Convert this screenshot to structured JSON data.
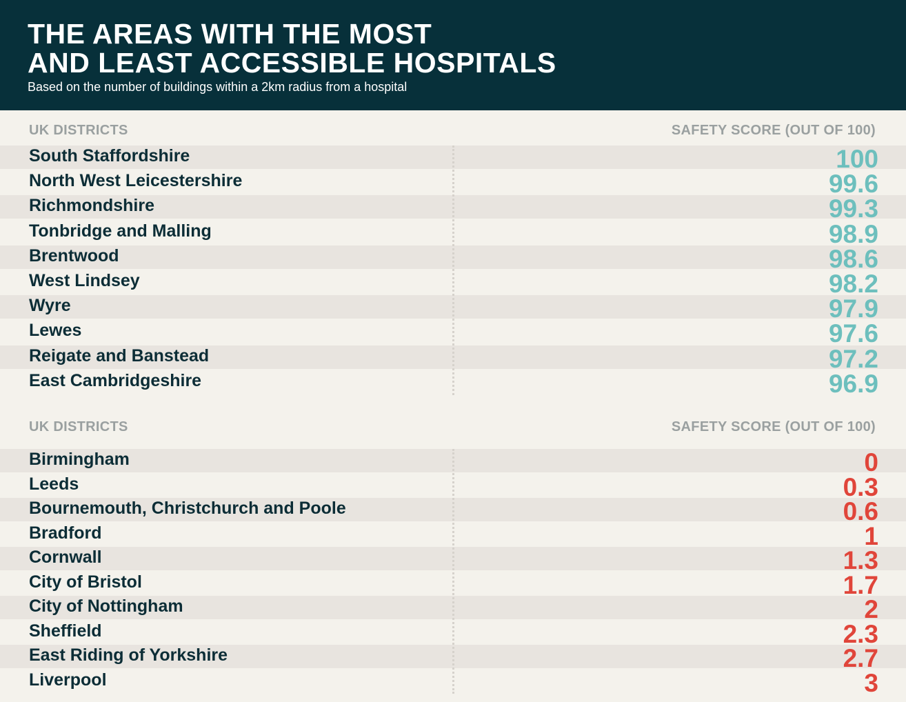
{
  "header": {
    "title_line1": "THE AREAS WITH THE MOST",
    "title_line2": "AND LEAST ACCESSIBLE HOSPITALS",
    "subtitle": "Based on the number of buildings within a 2km radius from a hospital"
  },
  "colors": {
    "header_bg": "#07303a",
    "most_accessible": "#6dbfbd",
    "least_accessible": "#e0453a",
    "name_text": "#0c2d36",
    "column_header": "#9aa0a0"
  },
  "chart_data": [
    {
      "type": "table",
      "columns": [
        "UK DISTRICTS",
        "SAFETY SCORE (OUT OF 100)"
      ],
      "rows": [
        {
          "district": "South Staffordshire",
          "score": 100
        },
        {
          "district": "North West Leicestershire",
          "score": 99.6
        },
        {
          "district": "Richmondshire",
          "score": 99.3
        },
        {
          "district": "Tonbridge and Malling",
          "score": 98.9
        },
        {
          "district": "Brentwood",
          "score": 98.6
        },
        {
          "district": "West Lindsey",
          "score": 98.2
        },
        {
          "district": "Wyre",
          "score": 97.9
        },
        {
          "district": "Lewes",
          "score": 97.6
        },
        {
          "district": "Reigate and Banstead",
          "score": 97.2
        },
        {
          "district": "East Cambridgeshire",
          "score": 96.9
        }
      ]
    },
    {
      "type": "table",
      "columns": [
        "UK DISTRICTS",
        "SAFETY SCORE (OUT OF 100)"
      ],
      "rows": [
        {
          "district": "Birmingham",
          "score": 0
        },
        {
          "district": "Leeds",
          "score": 0.3
        },
        {
          "district": "Bournemouth, Christchurch and Poole",
          "score": 0.6
        },
        {
          "district": "Bradford",
          "score": 1
        },
        {
          "district": "Cornwall",
          "score": 1.3
        },
        {
          "district": "City of Bristol",
          "score": 1.7
        },
        {
          "district": "City of Nottingham",
          "score": 2
        },
        {
          "district": "Sheffield",
          "score": 2.3
        },
        {
          "district": "East Riding of Yorkshire",
          "score": 2.7
        },
        {
          "district": "Liverpool",
          "score": 3
        }
      ]
    }
  ]
}
